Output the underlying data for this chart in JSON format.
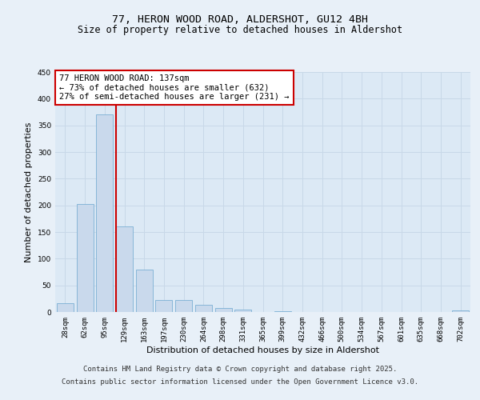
{
  "title_line1": "77, HERON WOOD ROAD, ALDERSHOT, GU12 4BH",
  "title_line2": "Size of property relative to detached houses in Aldershot",
  "xlabel": "Distribution of detached houses by size in Aldershot",
  "ylabel": "Number of detached properties",
  "categories": [
    "28sqm",
    "62sqm",
    "95sqm",
    "129sqm",
    "163sqm",
    "197sqm",
    "230sqm",
    "264sqm",
    "298sqm",
    "331sqm",
    "365sqm",
    "399sqm",
    "432sqm",
    "466sqm",
    "500sqm",
    "534sqm",
    "567sqm",
    "601sqm",
    "635sqm",
    "668sqm",
    "702sqm"
  ],
  "values": [
    17,
    202,
    370,
    160,
    80,
    22,
    22,
    13,
    7,
    4,
    0,
    1,
    0,
    0,
    0,
    0,
    0,
    0,
    0,
    0,
    3
  ],
  "bar_color": "#c9d9ec",
  "bar_edge_color": "#7bafd4",
  "vline_x_index": 3,
  "vline_color": "#cc0000",
  "annotation_line1": "77 HERON WOOD ROAD: 137sqm",
  "annotation_line2": "← 73% of detached houses are smaller (632)",
  "annotation_line3": "27% of semi-detached houses are larger (231) →",
  "annotation_box_color": "#ffffff",
  "annotation_box_edge_color": "#cc0000",
  "grid_color": "#c8d8e8",
  "fig_background": "#e8f0f8",
  "plot_background": "#dce9f5",
  "ylim": [
    0,
    450
  ],
  "yticks": [
    0,
    50,
    100,
    150,
    200,
    250,
    300,
    350,
    400,
    450
  ],
  "footer_line1": "Contains HM Land Registry data © Crown copyright and database right 2025.",
  "footer_line2": "Contains public sector information licensed under the Open Government Licence v3.0.",
  "title_fontsize": 9.5,
  "subtitle_fontsize": 8.5,
  "axis_label_fontsize": 8,
  "tick_fontsize": 6.5,
  "annotation_fontsize": 7.5,
  "footer_fontsize": 6.5
}
